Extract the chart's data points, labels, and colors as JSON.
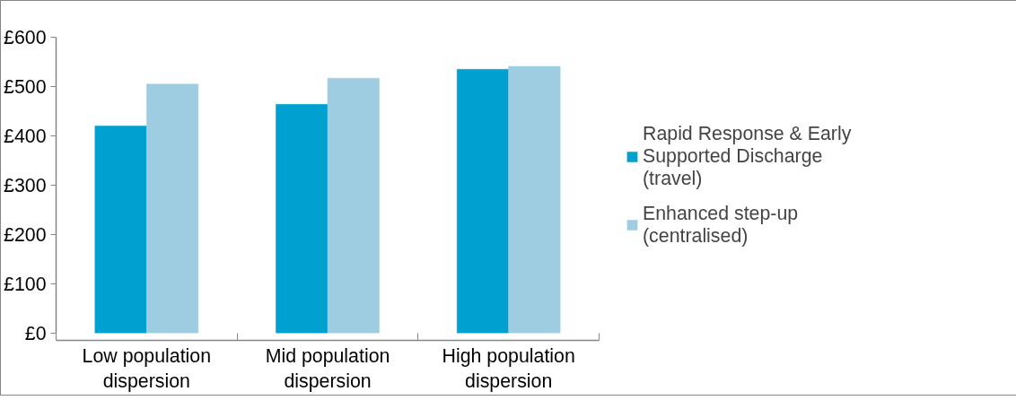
{
  "chart_data": {
    "type": "bar",
    "categories": [
      "Low population dispersion",
      "Mid population dispersion",
      "High population dispersion"
    ],
    "series": [
      {
        "name": "Rapid Response & Early Supported Discharge (travel)",
        "color": "#00a0d0",
        "values": [
          420,
          464,
          535
        ]
      },
      {
        "name": "Enhanced step-up (centralised)",
        "color": "#9ecde1",
        "values": [
          505,
          517,
          541
        ]
      }
    ],
    "ylim": [
      0,
      600
    ],
    "yticks": [
      {
        "value": 0,
        "label": "£0"
      },
      {
        "value": 100,
        "label": "£100"
      },
      {
        "value": 200,
        "label": "£200"
      },
      {
        "value": 300,
        "label": "£300"
      },
      {
        "value": 400,
        "label": "£400"
      },
      {
        "value": 500,
        "label": "£500"
      },
      {
        "value": 600,
        "label": "£600"
      }
    ],
    "legend": "right"
  }
}
